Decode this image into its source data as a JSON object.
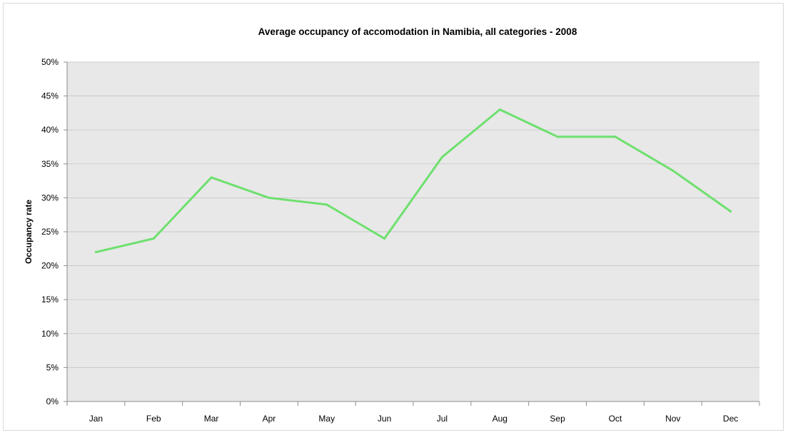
{
  "chart_data": {
    "type": "line",
    "title": "Average occupancy of accomodation in Namibia, all categories - 2008",
    "xlabel": "",
    "ylabel": "Occupancy rate",
    "categories": [
      "Jan",
      "Feb",
      "Mar",
      "Apr",
      "May",
      "Jun",
      "Jul",
      "Aug",
      "Sep",
      "Oct",
      "Nov",
      "Dec"
    ],
    "series": [
      {
        "values": [
          22,
          24,
          33,
          30,
          29,
          24,
          36,
          43,
          39,
          39,
          34,
          28
        ],
        "color": "#6ee06e"
      }
    ],
    "ylim": [
      0,
      50
    ],
    "yticks": [
      "0%",
      "5%",
      "10%",
      "15%",
      "20%",
      "25%",
      "30%",
      "35%",
      "40%",
      "45%",
      "50%"
    ],
    "grid": true,
    "legend": "none",
    "plot_background": "#e8e8e8",
    "gridline_color": "#bfbfbf"
  }
}
